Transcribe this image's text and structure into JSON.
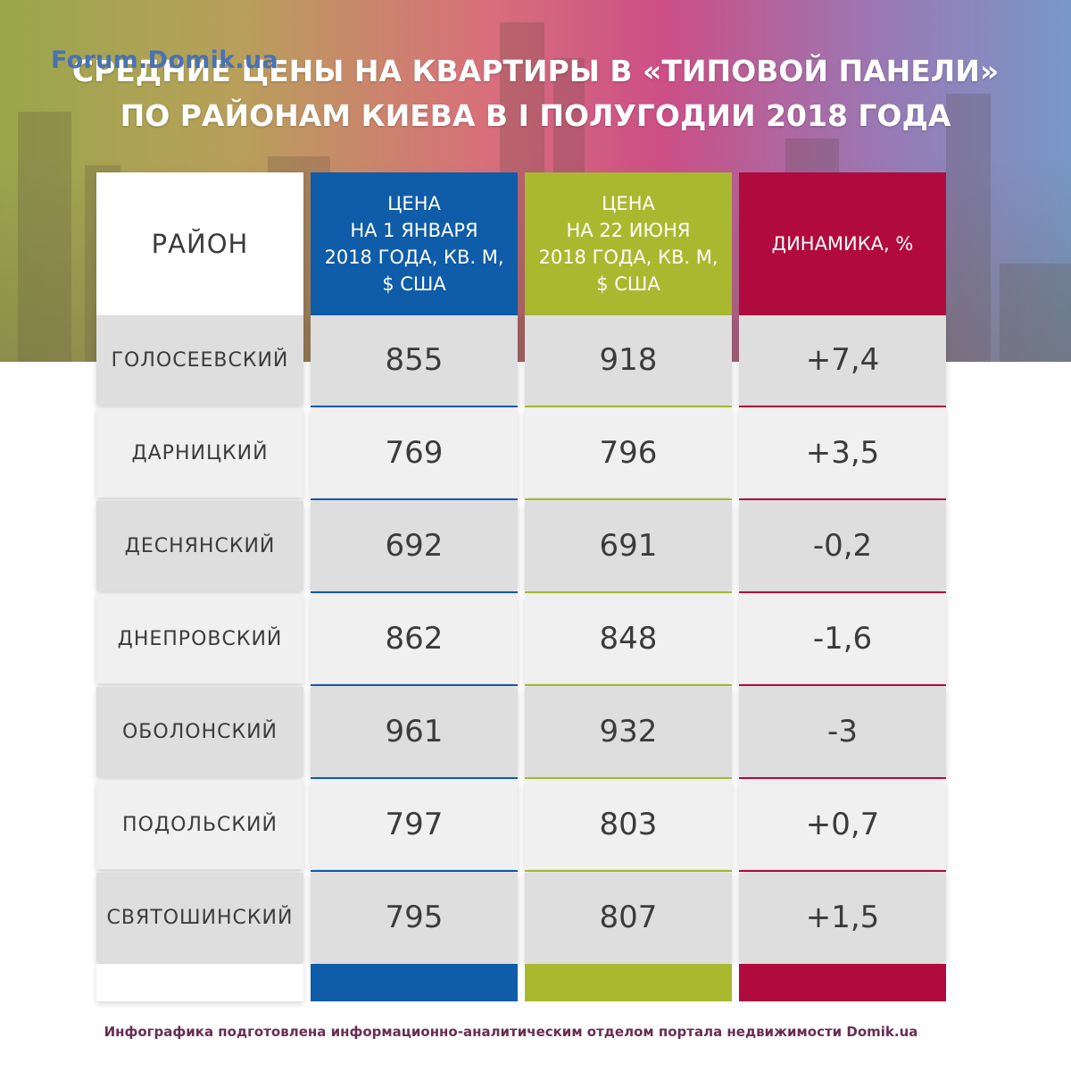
{
  "brand": {
    "watermark": "Forum.Domik.ua"
  },
  "title": {
    "line1": "СРЕДНИЕ ЦЕНЫ НА КВАРТИРЫ В «ТИПОВОЙ ПАНЕЛИ»",
    "line2": "ПО РАЙОНАМ КИЕВА В I ПОЛУГОДИИ 2018 ГОДА"
  },
  "headers": {
    "district": "РАЙОН",
    "price_jan": [
      "ЦЕНА",
      "НА 1 ЯНВАРЯ",
      "2018 ГОДА, КВ. М,",
      "$ США"
    ],
    "price_jun": [
      "ЦЕНА",
      "НА 22 ИЮНЯ",
      "2018 ГОДА, КВ. М,",
      "$ США"
    ],
    "change": "ДИНАМИКА, %"
  },
  "colors": {
    "price_jan": "#0f5ca8",
    "price_jun": "#a9b92f",
    "change": "#b10a3f"
  },
  "chart_data": {
    "type": "table",
    "title": "СРЕДНИЕ ЦЕНЫ НА КВАРТИРЫ В «ТИПОВОЙ ПАНЕЛИ» ПО РАЙОНАМ КИЕВА В I ПОЛУГОДИИ 2018 ГОДА",
    "columns": [
      "РАЙОН",
      "ЦЕНА НА 1 ЯНВАРЯ 2018 ГОДА, КВ. М, $ США",
      "ЦЕНА НА 22 ИЮНЯ 2018 ГОДА, КВ. М, $ США",
      "ДИНАМИКА, %"
    ],
    "rows": [
      {
        "district": "ГОЛОСЕЕВСКИЙ",
        "price_jan": "855",
        "price_jun": "918",
        "change": "+7,4"
      },
      {
        "district": "ДАРНИЦКИЙ",
        "price_jan": "769",
        "price_jun": "796",
        "change": "+3,5"
      },
      {
        "district": "ДЕСНЯНСКИЙ",
        "price_jan": "692",
        "price_jun": "691",
        "change": "-0,2"
      },
      {
        "district": "ДНЕПРОВСКИЙ",
        "price_jan": "862",
        "price_jun": "848",
        "change": "-1,6"
      },
      {
        "district": "ОБОЛОНСКИЙ",
        "price_jan": "961",
        "price_jun": "932",
        "change": "-3"
      },
      {
        "district": "ПОДОЛЬСКИЙ",
        "price_jan": "797",
        "price_jun": "803",
        "change": "+0,7"
      },
      {
        "district": "СВЯТОШИНСКИЙ",
        "price_jan": "795",
        "price_jun": "807",
        "change": "+1,5"
      }
    ]
  },
  "credit": "Инфографика подготовлена информационно-аналитическим отделом портала недвижимости Domik.ua"
}
